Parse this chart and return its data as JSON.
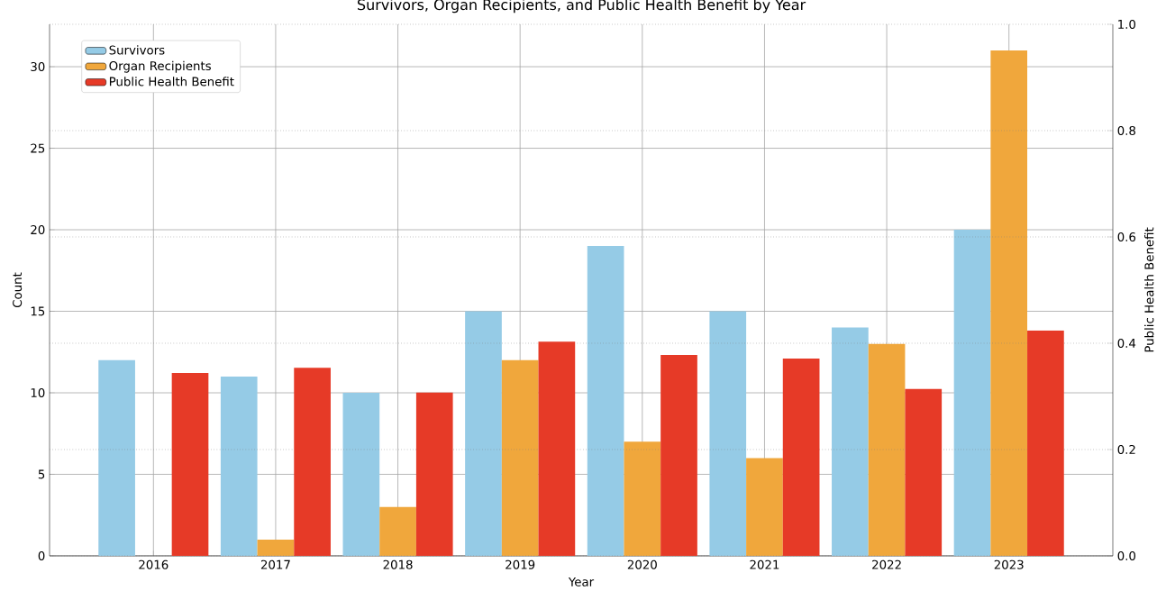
{
  "chart_data": {
    "type": "bar",
    "title": "Survivors, Organ Recipients, and Public Health Benefit by Year",
    "xlabel": "Year",
    "ylabel": "Count",
    "y2label": "Public Health Benefit",
    "categories": [
      "2016",
      "2017",
      "2018",
      "2019",
      "2020",
      "2021",
      "2022",
      "2023"
    ],
    "series": [
      {
        "name": "Survivors",
        "color": "#95cbe6",
        "values": [
          12,
          11,
          10,
          15,
          19,
          15,
          14,
          20
        ]
      },
      {
        "name": "Organ Recipients",
        "color": "#f0a73c",
        "values": [
          0,
          1,
          3,
          12,
          7,
          6,
          13,
          31
        ]
      },
      {
        "name": "Public Health Benefit",
        "color": "#e63a27",
        "axis": "y2",
        "values": [
          0.344,
          0.354,
          0.307,
          0.403,
          0.378,
          0.371,
          0.314,
          0.424
        ]
      }
    ],
    "ylim": [
      0,
      32.6
    ],
    "yticks": [
      0,
      5,
      10,
      15,
      20,
      25,
      30
    ],
    "y2lim": [
      0,
      1
    ],
    "y2ticks": [
      {
        "value": 0,
        "label": "0.0"
      },
      0.2,
      0.4,
      0.6,
      0.8,
      {
        "value": 1,
        "label": "1.0"
      }
    ],
    "grid": true,
    "legend": "top left"
  }
}
